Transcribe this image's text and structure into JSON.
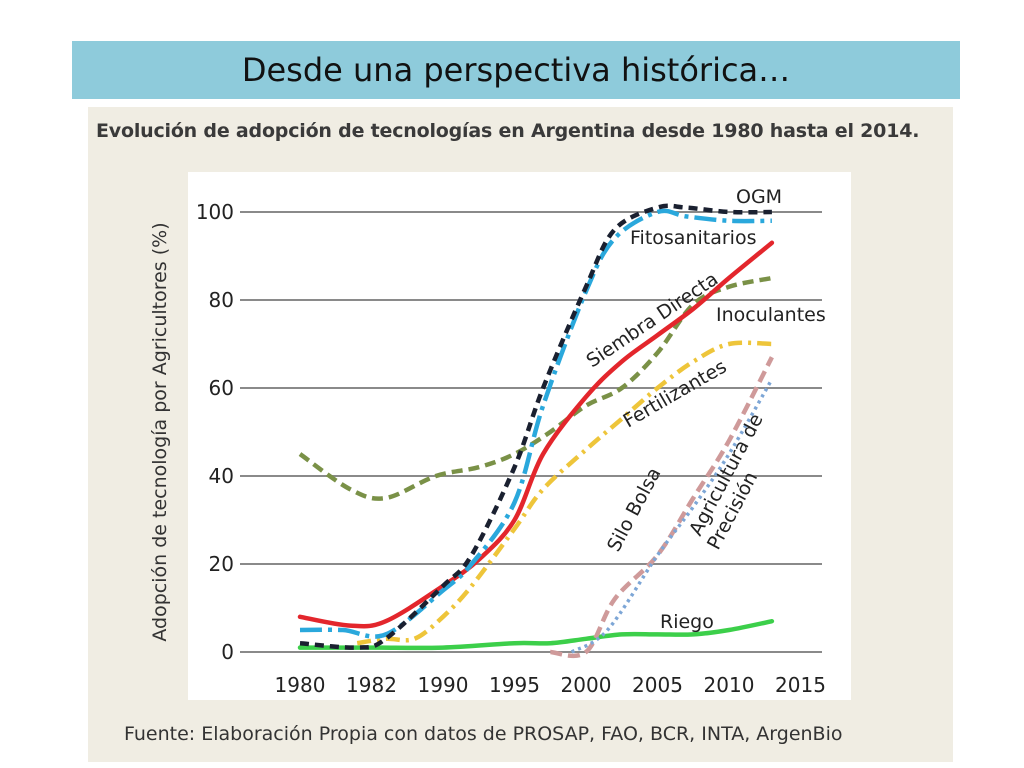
{
  "slide": {
    "title": "Desde una perspectiva histórica…"
  },
  "chart_data": {
    "type": "line",
    "title": "Evolución de adopción de tecnologías en Argentina desde 1980 hasta el 2014.",
    "source": "Fuente: Elaboración Propia con datos de PROSAP, FAO, BCR, INTA, ArgenBio",
    "xlabel": "",
    "ylabel": "Adopción de tecnología por Agricultores (%)",
    "categories": [
      "1980",
      "1982",
      "1990",
      "1995",
      "2000",
      "2005",
      "2010",
      "2015"
    ],
    "yticks": [
      0,
      20,
      40,
      60,
      80,
      100
    ],
    "ylim": [
      0,
      100
    ],
    "grid": true,
    "colors": {
      "ogm": "#1a2030",
      "fitosanitarios": "#2aa8dc",
      "siembra_directa": "#e3262c",
      "inoculantes": "#7a9147",
      "fertilizantes": "#eec53a",
      "silo_bolsa": "#cf9a9a",
      "agricultura_precision": "#7da6d6",
      "riego": "#3ccf4a"
    },
    "series": [
      {
        "name": "OGM",
        "key": "ogm",
        "dash": "9,6",
        "x": [
          0,
          0.8,
          1.2,
          2.0,
          2.4,
          3.0,
          3.4,
          4.0,
          4.4,
          5.0,
          5.4,
          6.0,
          6.6
        ],
        "y": [
          2,
          1,
          3,
          15,
          22,
          42,
          60,
          83,
          96,
          101,
          101,
          100,
          100
        ]
      },
      {
        "name": "Fitosanitarios",
        "key": "fitosanitarios",
        "dash": "22,6,4,6",
        "x": [
          0,
          0.6,
          1.2,
          2.0,
          2.4,
          3.0,
          3.4,
          4.0,
          4.4,
          5.0,
          5.4,
          6.0,
          6.6
        ],
        "y": [
          5,
          5,
          4,
          14,
          20,
          34,
          56,
          82,
          94,
          100,
          99,
          98,
          98
        ]
      },
      {
        "name": "Siembra Directa",
        "key": "siembra_directa",
        "dash": "",
        "x": [
          0,
          0.7,
          1.2,
          2.0,
          2.5,
          3.0,
          3.4,
          4.0,
          4.5,
          5.0,
          5.5,
          6.0,
          6.6
        ],
        "y": [
          8,
          6,
          7,
          15,
          21,
          30,
          45,
          58,
          66,
          72,
          78,
          85,
          93
        ]
      },
      {
        "name": "Inoculantes",
        "key": "inoculantes",
        "dash": "11,6",
        "x": [
          0,
          0.7,
          1.2,
          1.9,
          2.5,
          3.0,
          3.5,
          4.0,
          4.5,
          5.0,
          5.5,
          6.0,
          6.6
        ],
        "y": [
          45,
          37,
          35,
          40,
          42,
          45,
          50,
          56,
          60,
          68,
          79,
          83,
          85
        ]
      },
      {
        "name": "Fertilizantes",
        "key": "fertilizantes",
        "dash": "14,6,3,6",
        "x": [
          0.8,
          1.2,
          1.6,
          2.0,
          2.4,
          3.0,
          3.4,
          4.0,
          4.5,
          5.0,
          5.5,
          6.0,
          6.6
        ],
        "y": [
          2,
          3,
          3,
          8,
          15,
          28,
          37,
          46,
          53,
          60,
          66,
          70,
          70
        ]
      },
      {
        "name": "Silo Bolsa",
        "key": "silo_bolsa",
        "dash": "12,6",
        "x": [
          3.5,
          4.0,
          4.4,
          5.0,
          5.5,
          6.0,
          6.6
        ],
        "y": [
          0,
          0,
          12,
          22,
          35,
          48,
          67
        ]
      },
      {
        "name": "Agricultura de Precisión",
        "key": "agricultura_precision",
        "dash": "3,4",
        "x": [
          3.8,
          4.3,
          5.0,
          5.5,
          6.0,
          6.6
        ],
        "y": [
          0,
          5,
          22,
          33,
          45,
          62
        ]
      },
      {
        "name": "Riego",
        "key": "riego",
        "dash": "",
        "x": [
          0,
          1.0,
          2.0,
          3.0,
          3.5,
          4.0,
          4.5,
          5.0,
          5.5,
          6.0,
          6.6
        ],
        "y": [
          1,
          1,
          1,
          2,
          2,
          3,
          4,
          4,
          4,
          5,
          7
        ]
      }
    ],
    "annotations": [
      "OGM",
      "Fitosanitarios",
      "Siembra Directa",
      "Inoculantes",
      "Fertilizantes",
      "Silo Bolsa",
      "Agricultura de",
      "Precisión",
      "Riego"
    ]
  }
}
